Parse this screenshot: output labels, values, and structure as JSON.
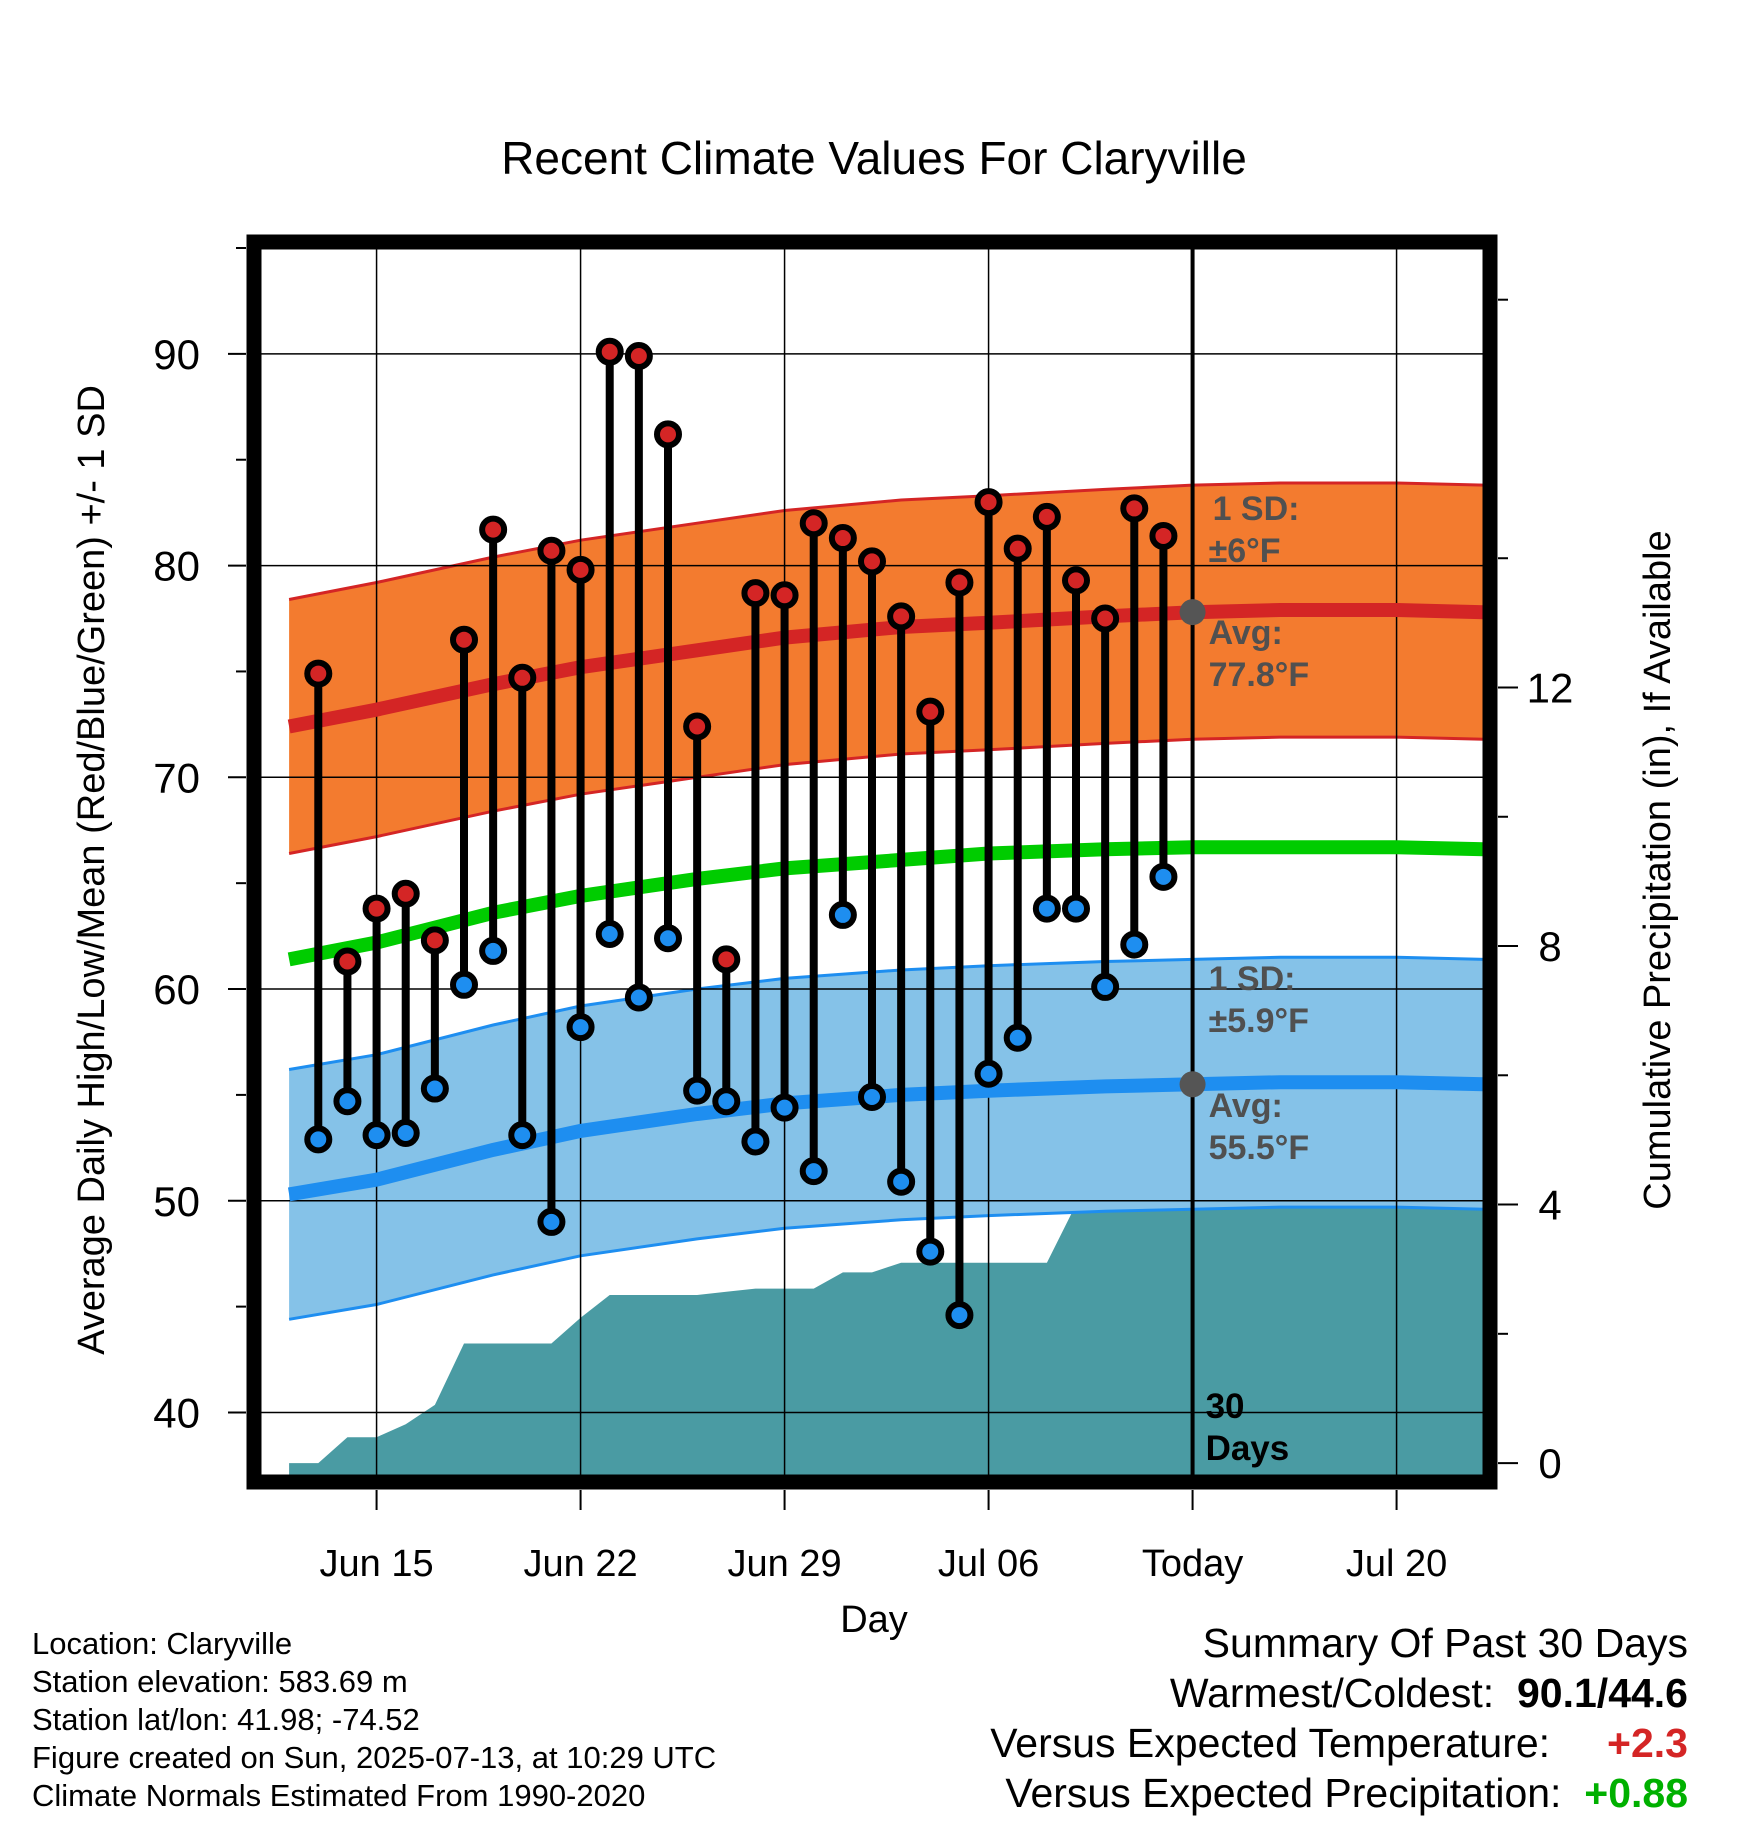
{
  "chart_data": {
    "type": "line",
    "title": "Recent Climate Values For Claryville",
    "xlabel": "Day",
    "ylabel": "Average Daily High/Low/Mean (Red/Blue/Green) +/- 1 SD",
    "y2label": "Cumulative Precipitation (in), If Available",
    "xticks": [
      "Jun 15",
      "Jun 22",
      "Jun 29",
      "Jul 06",
      "Today",
      "Jul 20"
    ],
    "xlim": [
      "2025-06-11",
      "2025-07-23"
    ],
    "ylim": [
      37,
      95
    ],
    "yticks": [
      40,
      50,
      60,
      70,
      80,
      90
    ],
    "y2lim": [
      -0.2,
      18.8
    ],
    "y2ticks": [
      0,
      4,
      8,
      12
    ],
    "grid": true,
    "today": "2025-07-13",
    "days": [
      "2025-06-13",
      "2025-06-14",
      "2025-06-15",
      "2025-06-16",
      "2025-06-17",
      "2025-06-18",
      "2025-06-19",
      "2025-06-20",
      "2025-06-21",
      "2025-06-22",
      "2025-06-23",
      "2025-06-24",
      "2025-06-25",
      "2025-06-26",
      "2025-06-27",
      "2025-06-28",
      "2025-06-29",
      "2025-06-30",
      "2025-07-01",
      "2025-07-02",
      "2025-07-03",
      "2025-07-04",
      "2025-07-05",
      "2025-07-06",
      "2025-07-07",
      "2025-07-08",
      "2025-07-09",
      "2025-07-10",
      "2025-07-11",
      "2025-07-12"
    ],
    "highs": [
      74.9,
      61.3,
      63.8,
      64.5,
      62.3,
      76.5,
      81.7,
      74.7,
      80.7,
      79.8,
      90.1,
      89.9,
      86.2,
      72.4,
      61.4,
      78.7,
      78.6,
      82.0,
      81.3,
      80.2,
      77.6,
      73.1,
      79.2,
      83.0,
      80.8,
      82.3,
      79.3,
      77.5,
      82.7,
      81.4
    ],
    "lows": [
      52.9,
      54.7,
      53.1,
      53.2,
      55.3,
      60.2,
      61.8,
      53.1,
      49.0,
      58.2,
      62.6,
      59.6,
      62.4,
      55.2,
      54.7,
      52.8,
      54.4,
      51.4,
      63.5,
      54.9,
      50.9,
      47.6,
      44.6,
      56.0,
      57.7,
      63.8,
      63.8,
      60.1,
      62.1,
      65.3
    ],
    "normal_days": [
      "2025-06-12",
      "2025-06-15",
      "2025-06-19",
      "2025-06-22",
      "2025-06-26",
      "2025-06-29",
      "2025-07-03",
      "2025-07-06",
      "2025-07-10",
      "2025-07-13",
      "2025-07-16",
      "2025-07-20",
      "2025-07-23"
    ],
    "normal_high": [
      72.4,
      73.2,
      74.4,
      75.2,
      76.0,
      76.6,
      77.1,
      77.3,
      77.6,
      77.8,
      77.9,
      77.9,
      77.8
    ],
    "normal_mean": [
      61.4,
      62.2,
      63.6,
      64.4,
      65.2,
      65.7,
      66.1,
      66.4,
      66.6,
      66.7,
      66.7,
      66.7,
      66.6
    ],
    "normal_low": [
      50.3,
      51.0,
      52.4,
      53.3,
      54.1,
      54.6,
      55.0,
      55.2,
      55.4,
      55.5,
      55.6,
      55.6,
      55.5
    ],
    "high_sd": 6,
    "low_sd": 5.9,
    "precip_days": [
      "2025-06-12",
      "2025-06-13",
      "2025-06-14",
      "2025-06-15",
      "2025-06-16",
      "2025-06-17",
      "2025-06-18",
      "2025-06-19",
      "2025-06-20",
      "2025-06-21",
      "2025-06-22",
      "2025-06-23",
      "2025-06-24",
      "2025-06-25",
      "2025-06-26",
      "2025-06-27",
      "2025-06-28",
      "2025-06-29",
      "2025-06-30",
      "2025-07-01",
      "2025-07-02",
      "2025-07-03",
      "2025-07-04",
      "2025-07-05",
      "2025-07-06",
      "2025-07-07",
      "2025-07-08",
      "2025-07-09",
      "2025-07-10",
      "2025-07-11",
      "2025-07-12",
      "2025-07-13",
      "2025-07-23"
    ],
    "precip_cum": [
      0.0,
      0.0,
      0.4,
      0.4,
      0.6,
      0.9,
      1.85,
      1.85,
      1.85,
      1.85,
      2.25,
      2.6,
      2.6,
      2.6,
      2.6,
      2.65,
      2.7,
      2.7,
      2.7,
      2.95,
      2.95,
      3.1,
      3.1,
      3.1,
      3.1,
      3.1,
      3.1,
      4.0,
      5.3,
      5.3,
      5.85,
      5.85,
      5.9
    ],
    "annotations": {
      "high_sd_label": "1 SD:",
      "high_sd_value": "±6°F",
      "high_avg_label": "Avg:",
      "high_avg_value": "77.8°F",
      "low_sd_label": "1 SD:",
      "low_sd_value": "±5.9°F",
      "low_avg_label": "Avg:",
      "low_avg_value": "55.5°F",
      "days_num": "30",
      "days_word": "Days"
    }
  },
  "info": {
    "location": "Location: Claryville",
    "elevation": "Station elevation: 583.69 m",
    "latlon": "Station lat/lon: 41.98; -74.52",
    "created": "Figure created on Sun, 2025-07-13, at 10:29 UTC",
    "normals": "Climate Normals Estimated From 1990-2020"
  },
  "summary": {
    "title": "Summary Of Past 30 Days",
    "warmest_label": "Warmest/Coldest:",
    "warmest_value": "90.1/44.6",
    "temp_label": "Versus Expected Temperature:",
    "temp_value": "+2.3",
    "precip_label": "Versus Expected Precipitation:",
    "precip_value": "+0.88"
  },
  "colors": {
    "high_band": "#f37b2f",
    "high_line": "#d42525",
    "mean_line": "#00cc00",
    "low_band": "#85c2e8",
    "low_line": "#1e8ef0",
    "precip": "#4a9ba3",
    "high_marker": "#d42525",
    "low_marker": "#1e8ef0",
    "annotation": "#505050",
    "temp_anomaly": "#d42525",
    "precip_anomaly": "#00b000"
  }
}
